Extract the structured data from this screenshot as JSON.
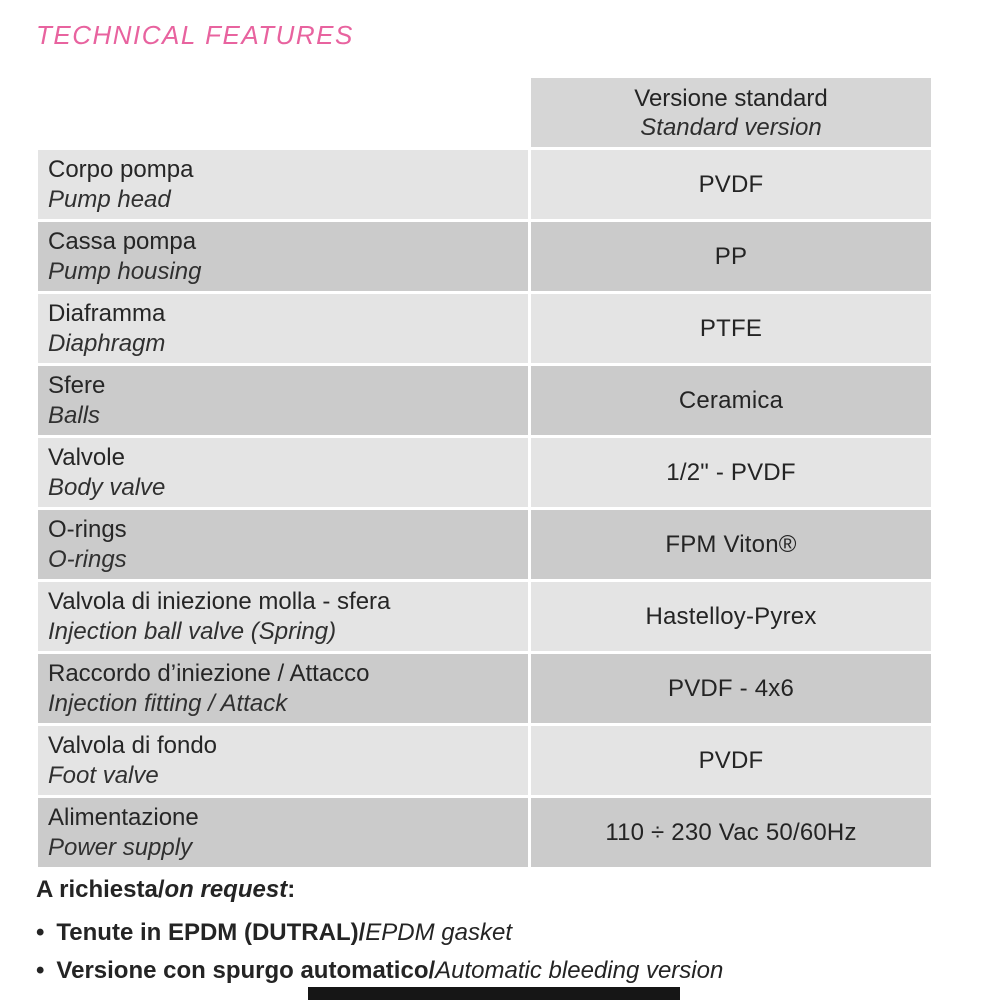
{
  "page": {
    "title": "TECHNICAL FEATURES",
    "accent_color": "#e8639f"
  },
  "table": {
    "header": {
      "line1": "Versione standard",
      "line2": "Standard version"
    },
    "rows": [
      {
        "it": "Corpo pompa",
        "en": "Pump head",
        "value": "PVDF"
      },
      {
        "it": "Cassa pompa",
        "en": "Pump housing",
        "value": "PP"
      },
      {
        "it": "Diaframma",
        "en": "Diaphragm",
        "value": "PTFE"
      },
      {
        "it": "Sfere",
        "en": "Balls",
        "value": "Ceramica"
      },
      {
        "it": "Valvole",
        "en": "Body valve",
        "value": "1/2\" - PVDF"
      },
      {
        "it": "O-rings",
        "en": "O-rings",
        "value": "FPM Viton®"
      },
      {
        "it": "Valvola di iniezione molla - sfera",
        "en": "Injection ball valve (Spring)",
        "value": "Hastelloy-Pyrex"
      },
      {
        "it": "Raccordo d’iniezione / Attacco",
        "en": "Injection fitting / Attack",
        "value": "PVDF - 4x6"
      },
      {
        "it": "Valvola di fondo",
        "en": "Foot valve",
        "value": "PVDF"
      },
      {
        "it": "Alimentazione",
        "en": "Power supply",
        "value": "110 ÷ 230 Vac 50/60Hz"
      }
    ],
    "row_colors": {
      "light": "#e4e4e4",
      "dark": "#cbcbcb",
      "header": "#d6d6d6"
    }
  },
  "notes": {
    "heading_bold": "A richiesta/",
    "heading_italic": "on request",
    "heading_suffix": ":",
    "bullet_icon": "•",
    "bullets": [
      {
        "bold": "Tenute in EPDM (DUTRAL)/",
        "italic": "EPDM gasket"
      },
      {
        "bold": "Versione con spurgo automatico/",
        "italic": "Automatic bleeding version"
      }
    ]
  }
}
